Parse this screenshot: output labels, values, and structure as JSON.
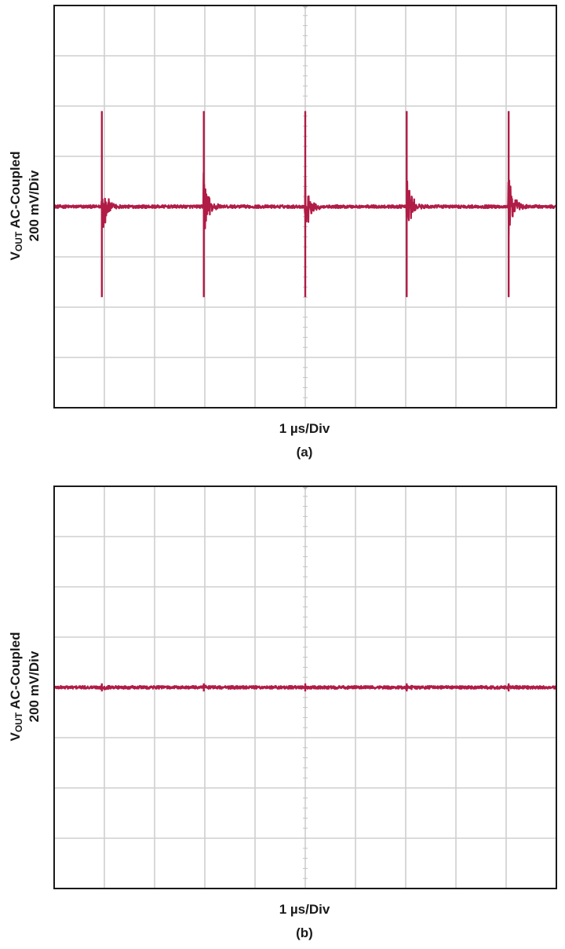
{
  "chart_data": [
    {
      "type": "line",
      "panel_label": "(a)",
      "ylabel_main": "V",
      "ylabel_sub": "OUT",
      "ylabel_rest": " AC-Coupled",
      "ylabel_scale": "200 mV/Div",
      "xlabel": "1 µs/Div",
      "x_divisions": 10,
      "y_divisions": 8,
      "x_range_div": [
        0,
        10
      ],
      "y_range_div": [
        -4,
        4
      ],
      "trace_color": "#b01c46",
      "grid": true,
      "spike_times_div": [
        0.95,
        2.98,
        5.0,
        7.02,
        9.05
      ],
      "spike_peak_high_div": 1.9,
      "spike_peak_low_div": -1.8,
      "baseline_noise_div": 0.03,
      "series": [
        {
          "values_note_unused": null
        }
      ]
    },
    {
      "type": "line",
      "panel_label": "(b)",
      "ylabel_main": "V",
      "ylabel_sub": "OUT",
      "ylabel_rest": " AC-Coupled",
      "ylabel_scale": "200 mV/Div",
      "xlabel": "1 µs/Div",
      "x_divisions": 10,
      "y_divisions": 8,
      "x_range_div": [
        0,
        10
      ],
      "y_range_div": [
        -4,
        4
      ],
      "trace_color": "#b01c46",
      "grid": true,
      "spike_times_div": [
        0.95,
        2.98,
        5.0,
        7.02,
        9.05
      ],
      "spike_peak_high_div": 0.08,
      "spike_peak_low_div": -0.08,
      "baseline_noise_div": 0.03
    }
  ]
}
